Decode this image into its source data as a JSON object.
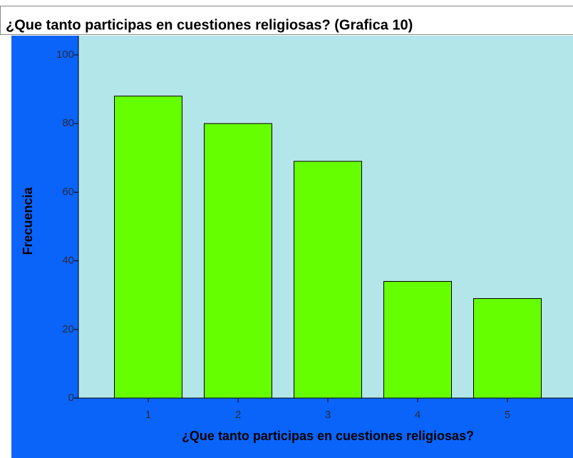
{
  "chart_data": {
    "type": "bar",
    "title": "¿Que tanto participas en cuestiones religiosas? (Grafica 10)",
    "x_label": "¿Que tanto participas en cuestiones religiosas?",
    "y_label": "Frecuencia",
    "categories": [
      "1",
      "2",
      "3",
      "4",
      "5"
    ],
    "values": [
      88,
      80,
      69,
      34,
      29
    ],
    "color": "#66ff00",
    "ylim": [
      0,
      100
    ],
    "yticks": [
      0,
      20,
      40,
      60,
      80,
      100
    ],
    "grid": false
  }
}
